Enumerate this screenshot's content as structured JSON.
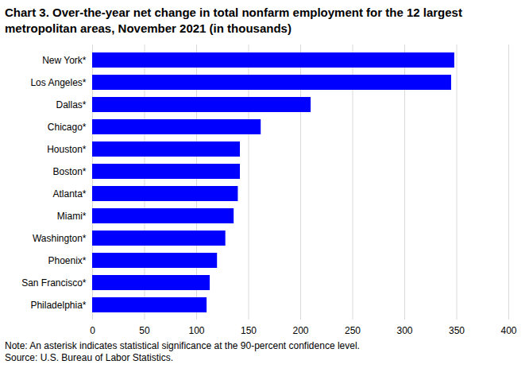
{
  "chart_data": {
    "type": "bar",
    "orientation": "horizontal",
    "title": "Chart 3. Over-the-year net change in total nonfarm employment for the 12 largest metropolitan areas, November 2021 (in thousands)",
    "categories": [
      "New York*",
      "Los Angeles*",
      "Dallas*",
      "Chicago*",
      "Houston*",
      "Boston*",
      "Atlanta*",
      "Miami*",
      "Washington*",
      "Phoenix*",
      "San Francisco*",
      "Philadelphia*"
    ],
    "values": [
      348,
      345,
      210,
      162,
      142,
      142,
      140,
      136,
      128,
      120,
      113,
      110
    ],
    "color": "#0000ff",
    "xlim": [
      0,
      400
    ],
    "xticks": [
      0,
      50,
      100,
      150,
      200,
      250,
      300,
      350,
      400
    ],
    "grid": true,
    "annotations": [
      "Note: An asterisk indicates statistical significance at the 90-percent confidence level.",
      "Source: U.S. Bureau of Labor Statistics."
    ]
  }
}
